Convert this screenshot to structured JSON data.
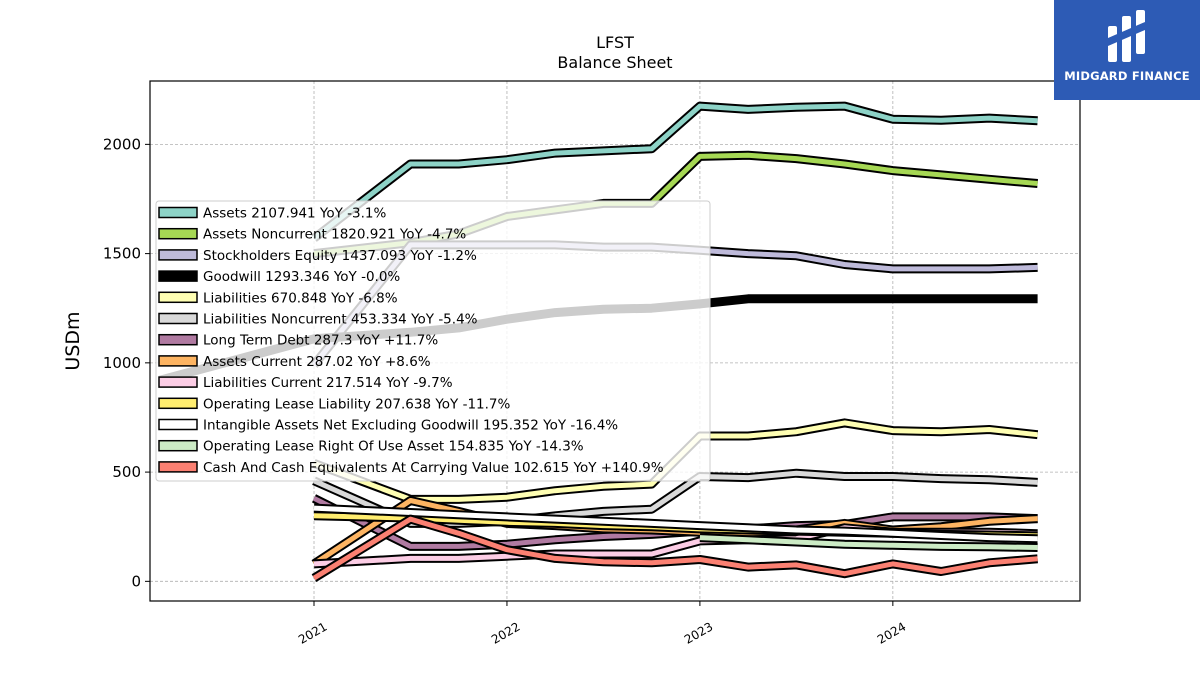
{
  "header": {
    "ticker": "LFST",
    "subtitle": "Balance  Sheet"
  },
  "brand": {
    "name": "MIDGARD FINANCE",
    "logo": "midgard-finance-logo",
    "color": "#2d5bb5"
  },
  "chart_data": {
    "type": "line",
    "ylabel": "USDm",
    "ylim": [
      -90,
      2290
    ],
    "xlim": [
      2020.15,
      2024.97
    ],
    "yticks": [
      0,
      500,
      1000,
      1500,
      2000
    ],
    "xticks": [
      {
        "value": 2021,
        "label": "2021"
      },
      {
        "value": 2022,
        "label": "2022"
      },
      {
        "value": 2023,
        "label": "2023"
      },
      {
        "value": 2024,
        "label": "2024"
      }
    ],
    "grid": true,
    "legend_position": "center-left",
    "series": [
      {
        "name": "Assets",
        "legend": "Assets  2107.941 YoY -3.1%",
        "color": "#8dd3c7",
        "width": 5,
        "x": [
          2021.0,
          2021.5,
          2021.75,
          2022.0,
          2022.25,
          2022.5,
          2022.75,
          2023.0,
          2023.25,
          2023.5,
          2023.75,
          2024.0,
          2024.25,
          2024.5,
          2024.75
        ],
        "y": [
          1570,
          1910,
          1910,
          1930,
          1960,
          1970,
          1980,
          2175,
          2160,
          2170,
          2175,
          2115,
          2110,
          2120,
          2108
        ]
      },
      {
        "name": "Assets Noncurrent",
        "legend": "Assets Noncurrent  1820.921 YoY -4.7%",
        "color": "#a6d854",
        "width": 5,
        "x": [
          2021.0,
          2021.5,
          2021.75,
          2022.0,
          2022.25,
          2022.5,
          2022.75,
          2023.0,
          2023.25,
          2023.5,
          2023.75,
          2024.0,
          2024.25,
          2024.5,
          2024.75
        ],
        "y": [
          1500,
          1550,
          1590,
          1670,
          1700,
          1730,
          1730,
          1945,
          1950,
          1935,
          1910,
          1880,
          1860,
          1840,
          1821
        ]
      },
      {
        "name": "Stockholders Equity",
        "legend": "Stockholders Equity  1437.093 YoY -1.2%",
        "color": "#bebada",
        "width": 5,
        "x": [
          2021.0,
          2021.5,
          2021.75,
          2022.0,
          2022.25,
          2022.5,
          2022.75,
          2023.0,
          2023.25,
          2023.5,
          2023.75,
          2024.0,
          2024.25,
          2024.5,
          2024.75
        ],
        "y": [
          990,
          1540,
          1540,
          1540,
          1540,
          1530,
          1530,
          1515,
          1500,
          1490,
          1450,
          1430,
          1430,
          1430,
          1437
        ]
      },
      {
        "name": "Goodwill",
        "legend": "Goodwill  1293.346 YoY -0.0%",
        "color": "#000000",
        "width": 9,
        "x": [
          2020.2,
          2021.0,
          2021.5,
          2021.75,
          2022.0,
          2022.25,
          2022.5,
          2022.75,
          2023.0,
          2023.25,
          2023.5,
          2023.75,
          2024.0,
          2024.25,
          2024.5,
          2024.75
        ],
        "y": [
          920,
          1110,
          1140,
          1160,
          1200,
          1230,
          1245,
          1250,
          1270,
          1293,
          1293,
          1293,
          1293,
          1293,
          1293,
          1293
        ]
      },
      {
        "name": "Liabilities",
        "legend": "Liabilities  670.848 YoY -6.8%",
        "color": "#ffffb3",
        "width": 5,
        "x": [
          2021.0,
          2021.5,
          2021.75,
          2022.0,
          2022.25,
          2022.5,
          2022.75,
          2023.0,
          2023.25,
          2023.5,
          2023.75,
          2024.0,
          2024.25,
          2024.5,
          2024.75
        ],
        "y": [
          540,
          375,
          375,
          385,
          415,
          435,
          445,
          665,
          665,
          685,
          725,
          690,
          685,
          695,
          671
        ]
      },
      {
        "name": "Liabilities Noncurrent",
        "legend": "Liabilities Noncurrent  453.334 YoY -5.4%",
        "color": "#d9d9d9",
        "width": 5,
        "x": [
          2021.0,
          2021.5,
          2021.75,
          2022.0,
          2022.25,
          2022.5,
          2022.75,
          2023.0,
          2023.25,
          2023.5,
          2023.75,
          2024.0,
          2024.25,
          2024.5,
          2024.75
        ],
        "y": [
          460,
          265,
          265,
          275,
          300,
          320,
          330,
          480,
          475,
          495,
          480,
          480,
          470,
          465,
          453
        ]
      },
      {
        "name": "Long Term Debt",
        "legend": "Long Term Debt  287.3 YoY +11.7%",
        "color": "#b07aa1",
        "width": 5,
        "x": [
          2021.0,
          2021.5,
          2021.75,
          2022.0,
          2022.25,
          2022.5,
          2022.75,
          2023.0,
          2023.25,
          2023.5,
          2023.75,
          2024.0,
          2024.25,
          2024.5,
          2024.75
        ],
        "y": [
          380,
          160,
          160,
          170,
          190,
          205,
          215,
          230,
          240,
          255,
          260,
          295,
          295,
          295,
          287
        ]
      },
      {
        "name": "Assets Current",
        "legend": "Assets Current  287.02 YoY +8.6%",
        "color": "#fdb462",
        "width": 5,
        "x": [
          2021.0,
          2021.5,
          2021.75,
          2022.0,
          2022.25,
          2022.5,
          2022.75,
          2023.0,
          2023.25,
          2023.5,
          2023.75,
          2024.0,
          2024.25,
          2024.5,
          2024.75
        ],
        "y": [
          80,
          370,
          320,
          265,
          255,
          240,
          235,
          225,
          215,
          235,
          265,
          235,
          250,
          275,
          287
        ]
      },
      {
        "name": "Liabilities Current",
        "legend": "Liabilities Current  217.514 YoY -9.7%",
        "color": "#fccde5",
        "width": 5,
        "x": [
          2021.0,
          2021.5,
          2021.75,
          2022.0,
          2022.25,
          2022.5,
          2022.75,
          2023.0,
          2023.25,
          2023.5,
          2023.75,
          2024.0,
          2024.25,
          2024.5,
          2024.75
        ],
        "y": [
          80,
          105,
          105,
          115,
          125,
          125,
          125,
          185,
          190,
          195,
          245,
          225,
          225,
          225,
          218
        ]
      },
      {
        "name": "Operating Lease Liability",
        "legend": "Operating Lease Liability  207.638 YoY -11.7%",
        "color": "#ffed6f",
        "width": 5,
        "x": [
          2021.0,
          2021.5,
          2021.75,
          2022.0,
          2022.25,
          2022.5,
          2022.75,
          2023.0,
          2023.25,
          2023.5,
          2023.75,
          2024.0,
          2024.25,
          2024.5,
          2024.75
        ],
        "y": [
          300,
          290,
          280,
          270,
          265,
          255,
          250,
          240,
          235,
          230,
          225,
          220,
          215,
          212,
          208
        ]
      },
      {
        "name": "Intangible Assets Net Excluding Goodwill",
        "legend": "Intangible Assets Net Excluding Goodwill  195.352 YoY -16.4%",
        "color": "#ffffff",
        "width": 5,
        "x": [
          2021.0,
          2021.5,
          2021.75,
          2022.0,
          2022.25,
          2022.5,
          2022.75,
          2023.0,
          2023.25,
          2023.5,
          2023.75,
          2024.0,
          2024.25,
          2024.5,
          2024.75
        ],
        "y": [
          335,
          315,
          305,
          295,
          285,
          275,
          265,
          255,
          245,
          235,
          230,
          220,
          210,
          200,
          195
        ]
      },
      {
        "name": "Operating Lease Right Of Use Asset",
        "legend": "Operating Lease Right Of Use Asset  154.835 YoY -14.3%",
        "color": "#ccebc5",
        "width": 5,
        "x": [
          2023.0,
          2023.25,
          2023.5,
          2023.75,
          2024.0,
          2024.25,
          2024.5,
          2024.75
        ],
        "y": [
          200,
          190,
          180,
          170,
          165,
          160,
          158,
          155
        ]
      },
      {
        "name": "Cash And Cash Equivalents At Carrying Value",
        "legend": "Cash And Cash Equivalents At Carrying Value  102.615 YoY +140.9%",
        "color": "#fb8072",
        "width": 5,
        "x": [
          2021.0,
          2021.5,
          2021.75,
          2022.0,
          2022.25,
          2022.5,
          2022.75,
          2023.0,
          2023.25,
          2023.5,
          2023.75,
          2024.0,
          2024.25,
          2024.5,
          2024.75
        ],
        "y": [
          15,
          285,
          220,
          145,
          105,
          90,
          85,
          100,
          65,
          75,
          35,
          80,
          45,
          85,
          103
        ]
      }
    ]
  }
}
